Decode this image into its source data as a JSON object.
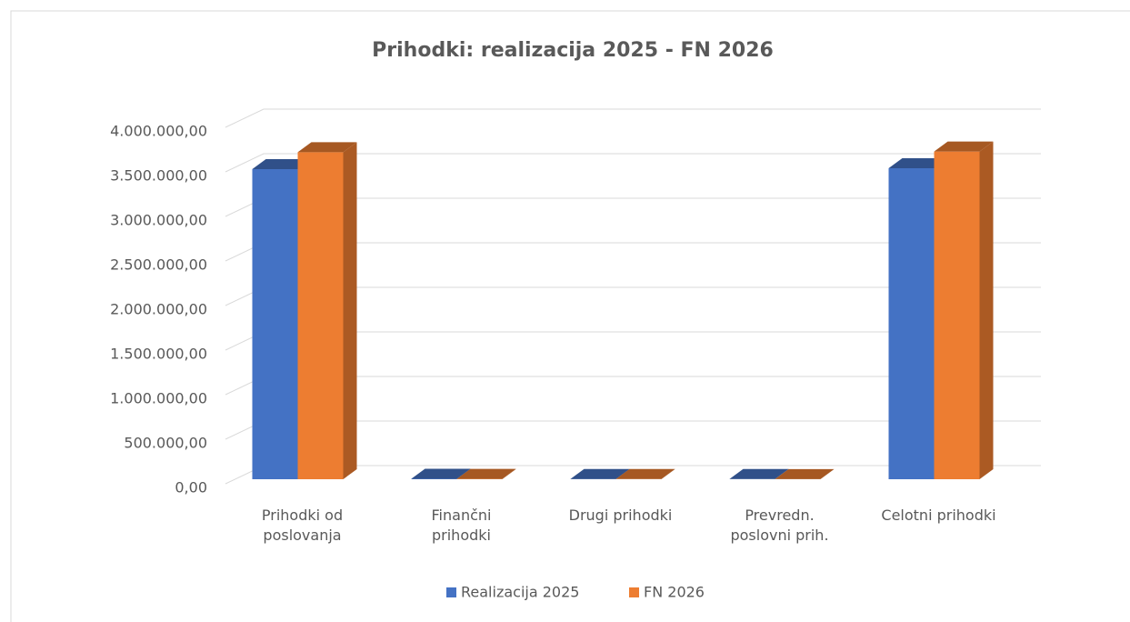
{
  "chart_data": {
    "type": "bar3d",
    "title": "Prihodki: realizacija 2025 - FN 2026",
    "categories": [
      "Prihodki od poslovanja",
      "Finančni prihodki",
      "Drugi prihodki",
      "Prevredn. poslovni prih.",
      "Celotni prihodki"
    ],
    "series": [
      {
        "name": "Realizacija 2025",
        "color": "#4472c4",
        "values": [
          3480000,
          5000,
          3000,
          2000,
          3490000
        ]
      },
      {
        "name": "FN 2026",
        "color": "#ed7d31",
        "values": [
          3670000,
          4000,
          2000,
          1000,
          3677000
        ]
      }
    ],
    "ylim": [
      0,
      4000000
    ],
    "yticks": [
      {
        "value": 0,
        "label": "0,00"
      },
      {
        "value": 500000,
        "label": "500.000,00"
      },
      {
        "value": 1000000,
        "label": "1.000.000,00"
      },
      {
        "value": 1500000,
        "label": "1.500.000,00"
      },
      {
        "value": 2000000,
        "label": "2.000.000,00"
      },
      {
        "value": 2500000,
        "label": "2.500.000,00"
      },
      {
        "value": 3000000,
        "label": "3.000.000,00"
      },
      {
        "value": 3500000,
        "label": "3.500.000,00"
      },
      {
        "value": 4000000,
        "label": "4.000.000,00"
      }
    ],
    "grid": true,
    "legend": "bottom"
  }
}
